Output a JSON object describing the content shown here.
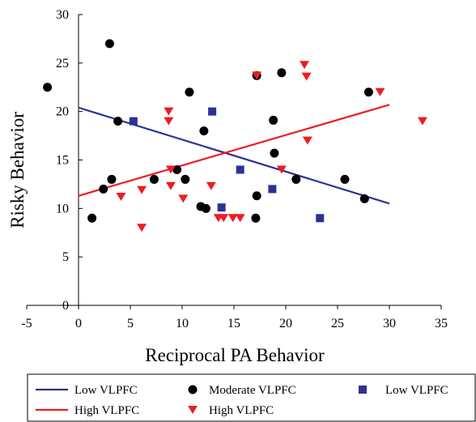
{
  "chart_data": {
    "type": "scatter",
    "xlabel": "Reciprocal PA Behavior",
    "ylabel": "Risky Behavior",
    "xlim": [
      -5,
      35
    ],
    "ylim": [
      0,
      30
    ],
    "xticks": [
      -5,
      0,
      5,
      10,
      15,
      20,
      25,
      30,
      35
    ],
    "yticks": [
      0,
      5,
      10,
      15,
      20,
      25,
      30
    ],
    "colors": {
      "low": "#2e3192",
      "high": "#ed1c24",
      "moderate": "#000000"
    },
    "series": [
      {
        "name": "Moderate VLPFC",
        "marker": "circle",
        "points": [
          [
            -3.0,
            22.5
          ],
          [
            1.3,
            9.0
          ],
          [
            2.4,
            12.0
          ],
          [
            3.0,
            27.0
          ],
          [
            3.2,
            13.0
          ],
          [
            3.8,
            19.0
          ],
          [
            7.3,
            13.0
          ],
          [
            9.5,
            14.0
          ],
          [
            10.3,
            13.0
          ],
          [
            10.7,
            22.0
          ],
          [
            11.8,
            10.2
          ],
          [
            12.1,
            18.0
          ],
          [
            12.3,
            10.0
          ],
          [
            17.1,
            9.0
          ],
          [
            17.2,
            11.3
          ],
          [
            17.2,
            23.7
          ],
          [
            18.8,
            19.1
          ],
          [
            18.9,
            15.7
          ],
          [
            19.6,
            24.0
          ],
          [
            21.0,
            13.0
          ],
          [
            25.7,
            13.0
          ],
          [
            27.6,
            11.0
          ],
          [
            28.0,
            22.0
          ]
        ]
      },
      {
        "name": "Low VLPFC",
        "marker": "square",
        "points": [
          [
            5.3,
            19.0
          ],
          [
            12.9,
            20.0
          ],
          [
            13.8,
            10.1
          ],
          [
            15.6,
            14.0
          ],
          [
            18.7,
            12.0
          ],
          [
            23.3,
            9.0
          ]
        ]
      },
      {
        "name": "High VLPFC",
        "marker": "triangle-down",
        "points": [
          [
            4.1,
            11.2
          ],
          [
            6.1,
            11.9
          ],
          [
            6.1,
            8.0
          ],
          [
            8.7,
            20.0
          ],
          [
            8.7,
            19.0
          ],
          [
            8.9,
            12.3
          ],
          [
            8.9,
            14.0
          ],
          [
            10.1,
            11.0
          ],
          [
            12.8,
            12.3
          ],
          [
            13.5,
            9.0
          ],
          [
            14.0,
            9.0
          ],
          [
            14.9,
            9.0
          ],
          [
            15.6,
            9.0
          ],
          [
            17.2,
            23.7
          ],
          [
            19.6,
            14.0
          ],
          [
            21.8,
            24.8
          ],
          [
            22.0,
            23.6
          ],
          [
            22.1,
            17.0
          ],
          [
            29.1,
            22.0
          ],
          [
            33.2,
            19.0
          ]
        ]
      }
    ],
    "lines": [
      {
        "name": "Low VLPFC",
        "from": [
          0,
          20.4
        ],
        "to": [
          30,
          10.5
        ]
      },
      {
        "name": "High VLPFC",
        "from": [
          0,
          11.3
        ],
        "to": [
          30,
          20.7
        ]
      }
    ],
    "legend": {
      "placement": "bottom",
      "entries": [
        {
          "label": "Low VLPFC",
          "symbol": "line",
          "color_key": "low"
        },
        {
          "label": "Moderate VLPFC",
          "symbol": "circle",
          "color_key": "moderate"
        },
        {
          "label": "Low VLPFC",
          "symbol": "square",
          "color_key": "low"
        },
        {
          "label": "High VLPFC",
          "symbol": "line",
          "color_key": "high"
        },
        {
          "label": "High VLPFC",
          "symbol": "triangle-down",
          "color_key": "high"
        }
      ]
    }
  }
}
